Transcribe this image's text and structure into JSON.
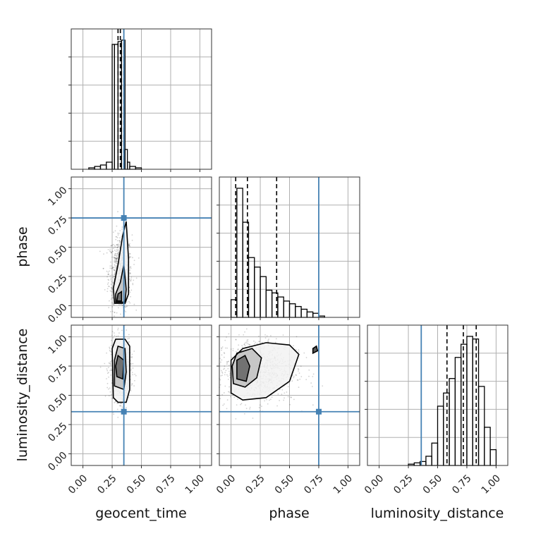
{
  "chart_data": {
    "type": "corner",
    "parameters": [
      "geocent_time",
      "phase",
      "luminosity_distance"
    ],
    "axis_labels": [
      "geocent_time",
      "phase",
      "luminosity_distance"
    ],
    "axis_range": [
      -0.1,
      1.1
    ],
    "tick_values": [
      0.0,
      0.25,
      0.5,
      0.75,
      1.0
    ],
    "tick_labels": [
      "0.00",
      "0.25",
      "0.50",
      "0.75",
      "1.00"
    ],
    "grid": true,
    "colors": {
      "truth": "#4682b4",
      "histogram": "#000000",
      "density": "#000000"
    },
    "truths": {
      "geocent_time": 0.35,
      "phase": 0.75,
      "luminosity_distance": 0.36
    },
    "marginals": [
      {
        "parameter": "geocent_time",
        "bin_edges": [
          0.0,
          0.05,
          0.1,
          0.15,
          0.2,
          0.25,
          0.27,
          0.3,
          0.33,
          0.36,
          0.38,
          0.4,
          0.45,
          0.5,
          0.55
        ],
        "counts": [
          0.0,
          0.01,
          0.02,
          0.03,
          0.05,
          0.88,
          0.88,
          0.9,
          0.91,
          0.14,
          0.05,
          0.02,
          0.01,
          0.0
        ],
        "quantile_lines": [
          0.3,
          0.32,
          0.35
        ]
      },
      {
        "parameter": "phase",
        "bin_edges": [
          0.0,
          0.05,
          0.1,
          0.15,
          0.2,
          0.25,
          0.3,
          0.35,
          0.4,
          0.45,
          0.5,
          0.55,
          0.6,
          0.65,
          0.7,
          0.75,
          0.8
        ],
        "counts": [
          0.13,
          0.95,
          0.7,
          0.44,
          0.37,
          0.3,
          0.2,
          0.18,
          0.15,
          0.12,
          0.1,
          0.08,
          0.06,
          0.04,
          0.03,
          0.01
        ],
        "quantile_lines": [
          0.04,
          0.14,
          0.39
        ]
      },
      {
        "parameter": "luminosity_distance",
        "bin_edges": [
          0.2,
          0.25,
          0.3,
          0.35,
          0.4,
          0.45,
          0.5,
          0.55,
          0.6,
          0.65,
          0.7,
          0.75,
          0.8,
          0.85,
          0.9,
          0.95,
          1.0
        ],
        "counts": [
          0.0,
          0.01,
          0.02,
          0.03,
          0.07,
          0.17,
          0.45,
          0.55,
          0.66,
          0.82,
          0.92,
          0.98,
          0.96,
          0.6,
          0.29,
          0.12
        ],
        "quantile_lines": [
          0.58,
          0.72,
          0.83
        ]
      }
    ],
    "joint": [
      {
        "x": "geocent_time",
        "y": "phase",
        "scatter": {
          "center": [
            0.32,
            0.28
          ],
          "spread": [
            0.05,
            0.16
          ],
          "count": 700
        },
        "contours": [
          [
            [
              0.27,
              0.02
            ],
            [
              0.36,
              0.02
            ],
            [
              0.39,
              0.1
            ],
            [
              0.39,
              0.4
            ],
            [
              0.37,
              0.72
            ],
            [
              0.34,
              0.6
            ],
            [
              0.3,
              0.35
            ],
            [
              0.26,
              0.15
            ]
          ],
          [
            [
              0.28,
              0.03
            ],
            [
              0.36,
              0.03
            ],
            [
              0.37,
              0.14
            ],
            [
              0.35,
              0.35
            ],
            [
              0.32,
              0.2
            ],
            [
              0.28,
              0.1
            ]
          ],
          [
            [
              0.29,
              0.04
            ],
            [
              0.33,
              0.04
            ],
            [
              0.33,
              0.12
            ],
            [
              0.3,
              0.1
            ]
          ]
        ]
      },
      {
        "x": "geocent_time",
        "y": "luminosity_distance",
        "scatter": {
          "center": [
            0.32,
            0.72
          ],
          "spread": [
            0.045,
            0.13
          ],
          "count": 700
        },
        "contours": [
          [
            [
              0.26,
              0.48
            ],
            [
              0.3,
              0.44
            ],
            [
              0.37,
              0.44
            ],
            [
              0.4,
              0.55
            ],
            [
              0.4,
              0.92
            ],
            [
              0.36,
              0.98
            ],
            [
              0.28,
              0.98
            ],
            [
              0.25,
              0.9
            ]
          ],
          [
            [
              0.27,
              0.58
            ],
            [
              0.35,
              0.55
            ],
            [
              0.37,
              0.7
            ],
            [
              0.36,
              0.9
            ],
            [
              0.3,
              0.92
            ],
            [
              0.27,
              0.8
            ]
          ],
          [
            [
              0.29,
              0.66
            ],
            [
              0.34,
              0.64
            ],
            [
              0.35,
              0.8
            ],
            [
              0.3,
              0.84
            ],
            [
              0.28,
              0.75
            ]
          ]
        ]
      },
      {
        "x": "phase",
        "y": "luminosity_distance",
        "scatter": {
          "center": [
            0.22,
            0.72
          ],
          "spread": [
            0.17,
            0.14
          ],
          "count": 900
        },
        "contours": [
          [
            [
              0.0,
              0.52
            ],
            [
              0.1,
              0.46
            ],
            [
              0.3,
              0.48
            ],
            [
              0.5,
              0.62
            ],
            [
              0.58,
              0.85
            ],
            [
              0.5,
              0.93
            ],
            [
              0.3,
              0.95
            ],
            [
              0.1,
              0.9
            ],
            [
              0.0,
              0.8
            ]
          ],
          [
            [
              0.02,
              0.6
            ],
            [
              0.12,
              0.57
            ],
            [
              0.22,
              0.65
            ],
            [
              0.26,
              0.82
            ],
            [
              0.18,
              0.9
            ],
            [
              0.05,
              0.86
            ],
            [
              0.01,
              0.75
            ]
          ],
          [
            [
              0.05,
              0.64
            ],
            [
              0.13,
              0.62
            ],
            [
              0.16,
              0.75
            ],
            [
              0.12,
              0.84
            ],
            [
              0.05,
              0.8
            ]
          ],
          [
            [
              0.7,
              0.86
            ],
            [
              0.74,
              0.88
            ],
            [
              0.73,
              0.92
            ],
            [
              0.7,
              0.9
            ]
          ]
        ]
      }
    ]
  }
}
